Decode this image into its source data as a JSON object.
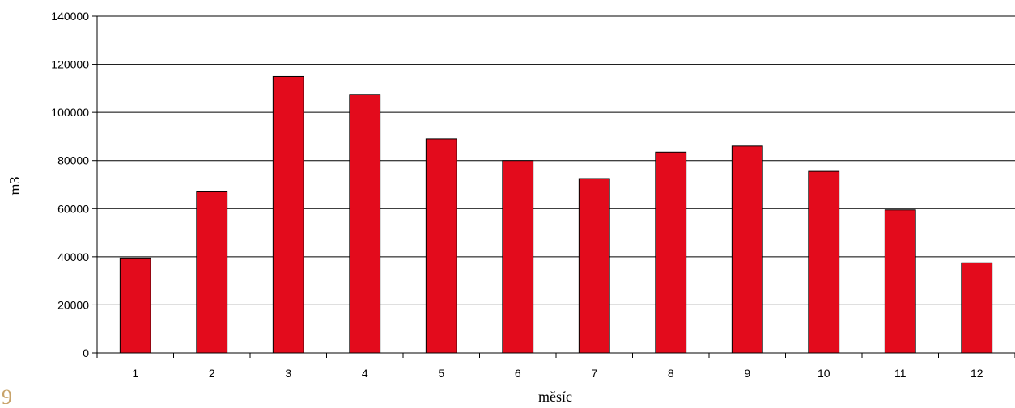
{
  "chart_data": {
    "type": "bar",
    "title": "",
    "xlabel": "měsíc",
    "ylabel": "m3",
    "categories": [
      "1",
      "2",
      "3",
      "4",
      "5",
      "6",
      "7",
      "8",
      "9",
      "10",
      "11",
      "12"
    ],
    "values": [
      39500,
      67000,
      115000,
      107500,
      89000,
      80000,
      72500,
      83500,
      86000,
      75500,
      59500,
      37500
    ],
    "ylim": [
      0,
      140000
    ],
    "yticks": [
      0,
      20000,
      40000,
      60000,
      80000,
      100000,
      120000,
      140000
    ],
    "ytick_labels": [
      "0",
      "20000",
      "40000",
      "60000",
      "80000",
      "100000",
      "120000",
      "140000"
    ],
    "grid": true,
    "legend": "none",
    "bar_color": "#e30b1c",
    "bar_edge_color": "#000000"
  },
  "corner_mark": "9"
}
